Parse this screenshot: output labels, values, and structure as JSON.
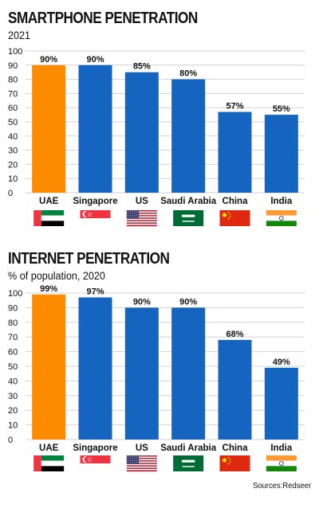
{
  "chart_data": [
    {
      "type": "bar",
      "title": "SMARTPHONE PENETRATION",
      "subtitle": "2021",
      "categories": [
        "UAE",
        "Singapore",
        "US",
        "Saudi Arabia",
        "China",
        "India"
      ],
      "values": [
        90,
        90,
        85,
        80,
        57,
        55
      ],
      "value_labels": [
        "90%",
        "90%",
        "85%",
        "80%",
        "57%",
        "55%"
      ],
      "ylim": [
        0,
        100
      ],
      "yticks": [
        "0",
        "10",
        "20",
        "30",
        "40",
        "50",
        "60",
        "70",
        "80",
        "90",
        "100"
      ],
      "grid": true,
      "colors": {
        "highlight": "#FF8C00",
        "default": "#1565C0"
      },
      "flags": [
        "uae-flag-icon",
        "singapore-flag-icon",
        "us-flag-icon",
        "saudi-arabia-flag-icon",
        "china-flag-icon",
        "india-flag-icon"
      ]
    },
    {
      "type": "bar",
      "title": "INTERNET PENETRATION",
      "subtitle": "% of population, 2020",
      "categories": [
        "UAE",
        "Singapore",
        "US",
        "Saudi Arabia",
        "China",
        "India"
      ],
      "values": [
        99,
        97,
        90,
        90,
        68,
        49
      ],
      "value_labels": [
        "99%",
        "97%",
        "90%",
        "90%",
        "68%",
        "49%"
      ],
      "ylim": [
        0,
        100
      ],
      "yticks": [
        "0",
        "10",
        "20",
        "30",
        "40",
        "50",
        "60",
        "70",
        "80",
        "90",
        "100"
      ],
      "grid": true,
      "colors": {
        "highlight": "#FF8C00",
        "default": "#1565C0"
      },
      "flags": [
        "uae-flag-icon",
        "singapore-flag-icon",
        "us-flag-icon",
        "saudi-arabia-flag-icon",
        "china-flag-icon",
        "india-flag-icon"
      ]
    }
  ],
  "source": "Sources:Redseer"
}
